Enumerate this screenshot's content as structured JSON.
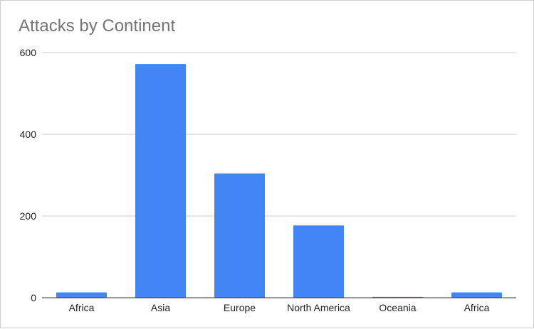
{
  "chart_data": {
    "type": "bar",
    "title": "Attacks by Continent",
    "categories": [
      "Africa",
      "Asia",
      "Europe",
      "North America",
      "Oceania",
      "Africa"
    ],
    "values": [
      13,
      572,
      304,
      177,
      2,
      13
    ],
    "ylim": [
      0,
      600
    ],
    "yticks": [
      0,
      200,
      400,
      600
    ],
    "grid": true,
    "legend": "none",
    "colors": {
      "bar": "#4285f4",
      "grid": "#cccccc",
      "axis": "#333333"
    }
  }
}
